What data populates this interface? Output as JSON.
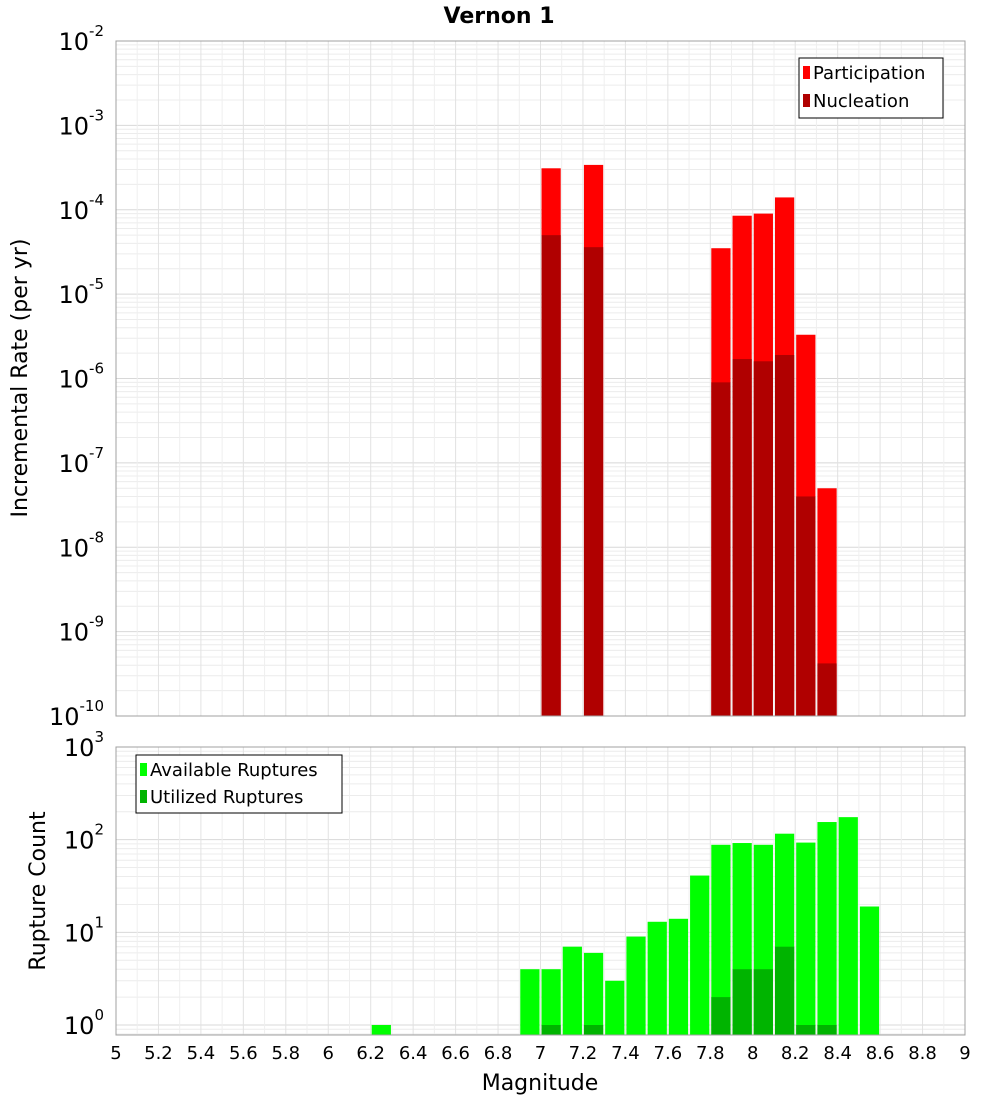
{
  "chart_data": [
    {
      "type": "bar",
      "title": "Vernon 1",
      "ylabel": "Incremental Rate (per yr)",
      "yscale": "log",
      "ylim": [
        1e-10,
        0.01
      ],
      "xlim": [
        5,
        9
      ],
      "grid": true,
      "legend_position": "top-right",
      "bar_width": 0.1,
      "y_tick_labels": [
        {
          "value": 1e-10,
          "base": "10",
          "exp": "-10"
        },
        {
          "value": 1e-09,
          "base": "10",
          "exp": "-9"
        },
        {
          "value": 1e-08,
          "base": "10",
          "exp": "-8"
        },
        {
          "value": 1e-07,
          "base": "10",
          "exp": "-7"
        },
        {
          "value": 1e-06,
          "base": "10",
          "exp": "-6"
        },
        {
          "value": 1e-05,
          "base": "10",
          "exp": "-5"
        },
        {
          "value": 0.0001,
          "base": "10",
          "exp": "-4"
        },
        {
          "value": 0.001,
          "base": "10",
          "exp": "-3"
        },
        {
          "value": 0.01,
          "base": "10",
          "exp": "-2"
        }
      ],
      "series": [
        {
          "name": "Participation",
          "color": "#ff0000",
          "x": [
            7.05,
            7.25,
            7.85,
            7.95,
            8.05,
            8.15,
            8.25,
            8.35
          ],
          "values": [
            0.00031,
            0.00034,
            3.5e-05,
            8.5e-05,
            9e-05,
            0.00014,
            3.3e-06,
            5e-08
          ]
        },
        {
          "name": "Nucleation",
          "color": "#b00000",
          "x": [
            7.05,
            7.25,
            7.85,
            7.95,
            8.05,
            8.15,
            8.25,
            8.35
          ],
          "values": [
            5e-05,
            3.6e-05,
            9e-07,
            1.7e-06,
            1.6e-06,
            1.9e-06,
            4e-08,
            4.2e-10
          ]
        }
      ]
    },
    {
      "type": "bar",
      "ylabel": "Rupture Count",
      "xlabel": "Magnitude",
      "yscale": "log",
      "ylim": [
        0.78,
        1000
      ],
      "xlim": [
        5,
        9
      ],
      "grid": true,
      "legend_position": "top-left",
      "bar_width": 0.1,
      "x_tick_labels": [
        "5",
        "5.2",
        "5.4",
        "5.6",
        "5.8",
        "6",
        "6.2",
        "6.4",
        "6.6",
        "6.8",
        "7",
        "7.2",
        "7.4",
        "7.6",
        "7.8",
        "8",
        "8.2",
        "8.4",
        "8.6",
        "8.8",
        "9"
      ],
      "y_tick_labels": [
        {
          "value": 1,
          "base": "10",
          "exp": "0"
        },
        {
          "value": 10,
          "base": "10",
          "exp": "1"
        },
        {
          "value": 100,
          "base": "10",
          "exp": "2"
        },
        {
          "value": 1000,
          "base": "10",
          "exp": "3"
        }
      ],
      "series": [
        {
          "name": "Available Ruptures",
          "color": "#00ff00",
          "x": [
            6.25,
            6.95,
            7.05,
            7.15,
            7.25,
            7.35,
            7.45,
            7.55,
            7.65,
            7.75,
            7.85,
            7.95,
            8.05,
            8.15,
            8.25,
            8.35,
            8.45,
            8.55
          ],
          "values": [
            1,
            4,
            4,
            7,
            6,
            3,
            9,
            13,
            14,
            41,
            88,
            92,
            88,
            116,
            93,
            155,
            175,
            19
          ]
        },
        {
          "name": "Utilized Ruptures",
          "color": "#00b400",
          "x": [
            7.05,
            7.25,
            7.85,
            7.95,
            8.05,
            8.15,
            8.25,
            8.35
          ],
          "values": [
            1,
            1,
            2,
            4,
            4,
            7,
            1,
            1
          ]
        }
      ]
    }
  ]
}
